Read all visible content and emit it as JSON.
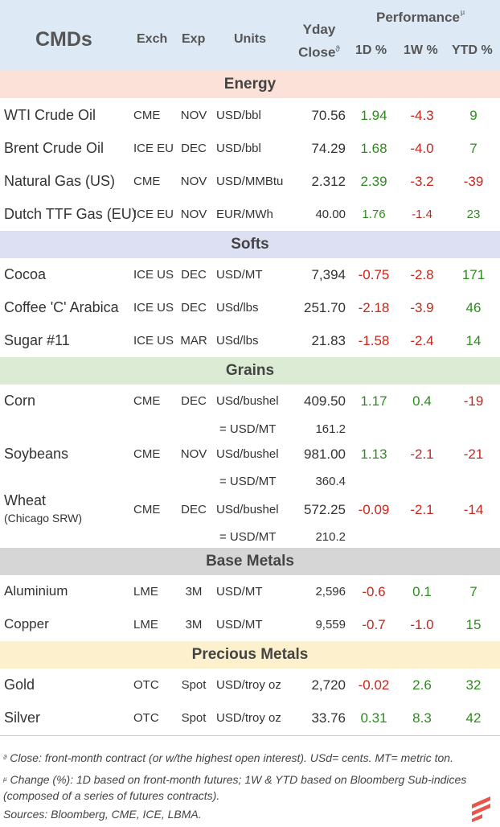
{
  "header": {
    "brand": "CMDs",
    "exch": "Exch",
    "exp": "Exp",
    "units": "Units",
    "yday_line1": "Yday",
    "yday_line2": "Close",
    "yday_mark": "ϑ",
    "performance": "Performance",
    "performance_mark": "µ",
    "d1": "1D %",
    "w1": "1W %",
    "ytd": "YTD %"
  },
  "sections": {
    "energy": {
      "title": "Energy",
      "color": "#fbe1d7"
    },
    "softs": {
      "title": "Softs",
      "color": "#dde0f2"
    },
    "grains": {
      "title": "Grains",
      "color": "#dcecd4"
    },
    "base": {
      "title": "Base Metals",
      "color": "#d6d6d6"
    },
    "precious": {
      "title": "Precious Metals",
      "color": "#fdf0cc"
    }
  },
  "rows": {
    "wti": {
      "name": "WTI Crude Oil",
      "exch": "CME",
      "exp": "NOV",
      "units": "USD/bbl",
      "close": "70.56",
      "d1": "1.94",
      "w1": "-4.3",
      "ytd": "9"
    },
    "brent": {
      "name": "Brent Crude Oil",
      "exch": "ICE EU",
      "exp": "DEC",
      "units": "USD/bbl",
      "close": "74.29",
      "d1": "1.68",
      "w1": "-4.0",
      "ytd": "7"
    },
    "natgas": {
      "name": "Natural Gas (US)",
      "exch": "CME",
      "exp": "NOV",
      "units": "USD/MMBtu",
      "close": "2.312",
      "d1": "2.39",
      "w1": "-3.2",
      "ytd": "-39"
    },
    "ttf": {
      "name": "Dutch TTF Gas (EU)",
      "exch": "ICE EU",
      "exp": "NOV",
      "units": "EUR/MWh",
      "close": "40.00",
      "d1": "1.76",
      "w1": "-1.4",
      "ytd": "23"
    },
    "cocoa": {
      "name": "Cocoa",
      "exch": "ICE US",
      "exp": "DEC",
      "units": "USD/MT",
      "close": "7,394",
      "d1": "-0.75",
      "w1": "-2.8",
      "ytd": "171"
    },
    "coffee": {
      "name": "Coffee 'C' Arabica",
      "exch": "ICE US",
      "exp": "DEC",
      "units": "USd/lbs",
      "close": "251.70",
      "d1": "-2.18",
      "w1": "-3.9",
      "ytd": "46"
    },
    "sugar": {
      "name": "Sugar #11",
      "exch": "ICE US",
      "exp": "MAR",
      "units": "USd/lbs",
      "close": "21.83",
      "d1": "-1.58",
      "w1": "-2.4",
      "ytd": "14"
    },
    "corn": {
      "name": "Corn",
      "exch": "CME",
      "exp": "DEC",
      "units": "USd/bushel",
      "close": "409.50",
      "d1": "1.17",
      "w1": "0.4",
      "ytd": "-19",
      "sub_label": "= USD/MT",
      "sub_value": "161.2"
    },
    "soy": {
      "name": "Soybeans",
      "exch": "CME",
      "exp": "NOV",
      "units": "USd/bushel",
      "close": "981.00",
      "d1": "1.13",
      "w1": "-2.1",
      "ytd": "-21",
      "sub_label": "= USD/MT",
      "sub_value": "360.4"
    },
    "wheat": {
      "name": "Wheat",
      "name_sub": "(Chicago SRW)",
      "exch": "CME",
      "exp": "DEC",
      "units": "USd/bushel",
      "close": "572.25",
      "d1": "-0.09",
      "w1": "-2.1",
      "ytd": "-14",
      "sub_label": "= USD/MT",
      "sub_value": "210.2"
    },
    "alu": {
      "name": "Aluminium",
      "exch": "LME",
      "exp": "3M",
      "units": "USD/MT",
      "close": "2,596",
      "d1": "-0.6",
      "w1": "0.1",
      "ytd": "7"
    },
    "copper": {
      "name": "Copper",
      "exch": "LME",
      "exp": "3M",
      "units": "USD/MT",
      "close": "9,559",
      "d1": "-0.7",
      "w1": "-1.0",
      "ytd": "15"
    },
    "gold": {
      "name": "Gold",
      "exch": "OTC",
      "exp": "Spot",
      "units": "USD/troy oz",
      "close": "2,720",
      "d1": "-0.02",
      "w1": "2.6",
      "ytd": "32"
    },
    "silver": {
      "name": "Silver",
      "exch": "OTC",
      "exp": "Spot",
      "units": "USD/troy oz",
      "close": "33.76",
      "d1": "0.31",
      "w1": "8.3",
      "ytd": "42"
    }
  },
  "footnotes": {
    "close_mark": "ϑ",
    "close_note": "Close: front-month contract (or w/the highest open interest). USd= cents. MT= metric ton.",
    "change_mark": "µ",
    "change_note": "Change (%): 1D based on front-month futures; 1W & YTD based on Bloomberg Sub-indices (composed of a series of futures contracts).",
    "sources": "Sources: Bloomberg, CME, ICE, LBMA."
  },
  "colors": {
    "positive": "#2e8b1f",
    "negative": "#c6261c",
    "header_bg": "#dde9f4",
    "logo": "#e8554a"
  }
}
